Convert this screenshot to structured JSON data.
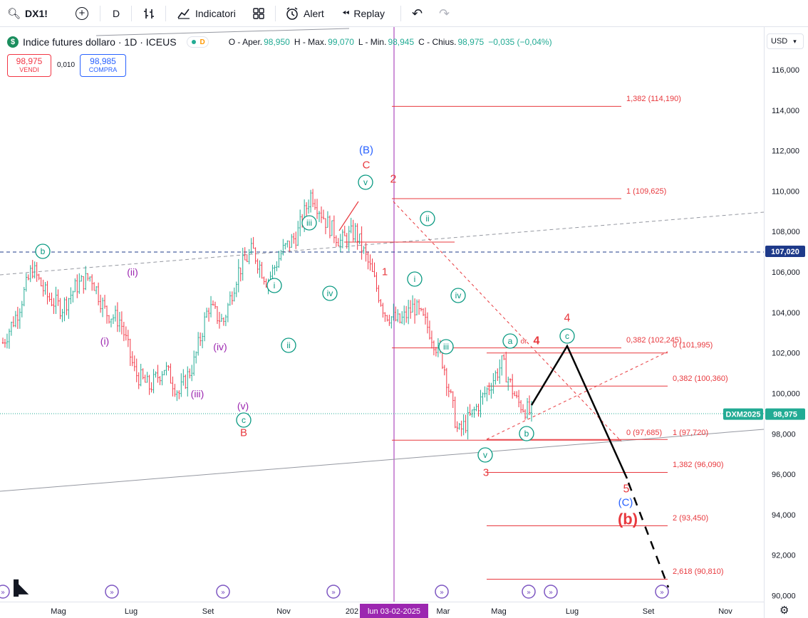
{
  "toolbar": {
    "symbol": "DX1!",
    "interval": "D",
    "indicators_label": "Indicatori",
    "alert_label": "Alert",
    "replay_label": "Replay"
  },
  "legend": {
    "title": "Indice futures dollaro · 1D · ICEUS",
    "delay_badge": "D",
    "open_label": "O - Aper.",
    "open": "98,950",
    "high_label": "H - Max.",
    "high": "99,070",
    "low_label": "L - Min.",
    "low": "98,945",
    "close_label": "C - Chius.",
    "close": "98,975",
    "change": "−0,035 (−0,04%)"
  },
  "trade": {
    "sell_price": "98,975",
    "sell_label": "VENDI",
    "spread": "0,010",
    "buy_price": "98,985",
    "buy_label": "COMPRA"
  },
  "currency": "USD",
  "colors": {
    "up": "#22ab94",
    "down": "#f23645",
    "wave_red": "#e8393e",
    "wave_blue": "#2962ff",
    "wave_teal": "#089981",
    "wave_purple": "#9c27b0",
    "fib": "#e8393e",
    "crosshair": "#9c27b0"
  },
  "chart_data": {
    "type": "candlestick",
    "x_ticks": [
      "Mag",
      "Lug",
      "Set",
      "Nov",
      "202",
      "Mar",
      "Mag",
      "Lug",
      "Set",
      "Nov"
    ],
    "y_ticks": [
      "90,000",
      "92,000",
      "94,000",
      "96,000",
      "98,000",
      "100,000",
      "102,000",
      "104,000",
      "106,000",
      "108,000",
      "110,000",
      "112,000",
      "114,000",
      "116,000"
    ],
    "ylim": [
      89.9,
      117.2
    ],
    "crosshair_date": "lun 03-02-2025",
    "price_tags": [
      {
        "label": "107,020",
        "value": 107.02
      },
      {
        "label": "DXM2025",
        "value": 98.975
      },
      {
        "label": "98,975",
        "value": 98.975
      }
    ],
    "fib_levels": [
      {
        "label": "1,382 (114,190)",
        "value": 114.19
      },
      {
        "label": "1 (109,625)",
        "value": 109.625
      },
      {
        "label": "0,382 (102,245)",
        "value": 102.245
      },
      {
        "label": "0 (101,995)",
        "value": 101.995
      },
      {
        "label": "0,382 (100,360)",
        "value": 100.36
      },
      {
        "label": "0 (97,685)",
        "value": 97.685
      },
      {
        "label": "1 (97,720)",
        "value": 97.72
      },
      {
        "label": "1,382 (96,090)",
        "value": 96.09
      },
      {
        "label": "2 (93,450)",
        "value": 93.45
      },
      {
        "label": "2,618 (90,810)",
        "value": 90.81
      }
    ],
    "wave_labels": [
      {
        "text": "(B)",
        "color": "blue"
      },
      {
        "text": "C",
        "color": "red"
      },
      {
        "text": "2",
        "color": "red"
      },
      {
        "text": "1",
        "color": "red"
      },
      {
        "text": "3",
        "color": "red"
      },
      {
        "text": "4",
        "color": "red"
      },
      {
        "text": "4",
        "color": "red"
      },
      {
        "text": "5",
        "color": "red"
      },
      {
        "text": "(C)",
        "color": "blue"
      },
      {
        "text": "(b)",
        "color": "red"
      },
      {
        "text": "B",
        "color": "red"
      },
      {
        "text": "or",
        "color": "red"
      },
      {
        "text": "(i)",
        "color": "purple"
      },
      {
        "text": "(ii)",
        "color": "purple"
      },
      {
        "text": "(iii)",
        "color": "purple"
      },
      {
        "text": "(iv)",
        "color": "purple"
      },
      {
        "text": "(v)",
        "color": "purple"
      },
      {
        "text": "b",
        "color": "teal"
      },
      {
        "text": "c",
        "color": "teal"
      },
      {
        "text": "i",
        "color": "teal"
      },
      {
        "text": "ii",
        "color": "teal"
      },
      {
        "text": "iii",
        "color": "teal"
      },
      {
        "text": "iv",
        "color": "teal"
      },
      {
        "text": "v",
        "color": "teal"
      },
      {
        "text": "i",
        "color": "teal"
      },
      {
        "text": "ii",
        "color": "teal"
      },
      {
        "text": "iii",
        "color": "teal"
      },
      {
        "text": "iv",
        "color": "teal"
      },
      {
        "text": "v",
        "color": "teal"
      },
      {
        "text": "a",
        "color": "teal"
      },
      {
        "text": "b",
        "color": "teal"
      },
      {
        "text": "c",
        "color": "teal"
      }
    ],
    "series": [
      {
        "name": "DX1!",
        "key_closes": [
          102.5,
          104.0,
          106.2,
          104.8,
          104.2,
          105.3,
          105.8,
          104.0,
          103.6,
          101.0,
          100.3,
          101.3,
          100.0,
          101.5,
          104.3,
          103.5,
          106.0,
          107.1,
          105.5,
          107.0,
          107.8,
          109.9,
          108.5,
          107.5,
          108.0,
          106.2,
          104.0,
          103.5,
          104.3,
          103.2,
          101.5,
          98.0,
          99.0,
          100.2,
          101.5,
          99.6,
          98.975
        ]
      }
    ]
  }
}
